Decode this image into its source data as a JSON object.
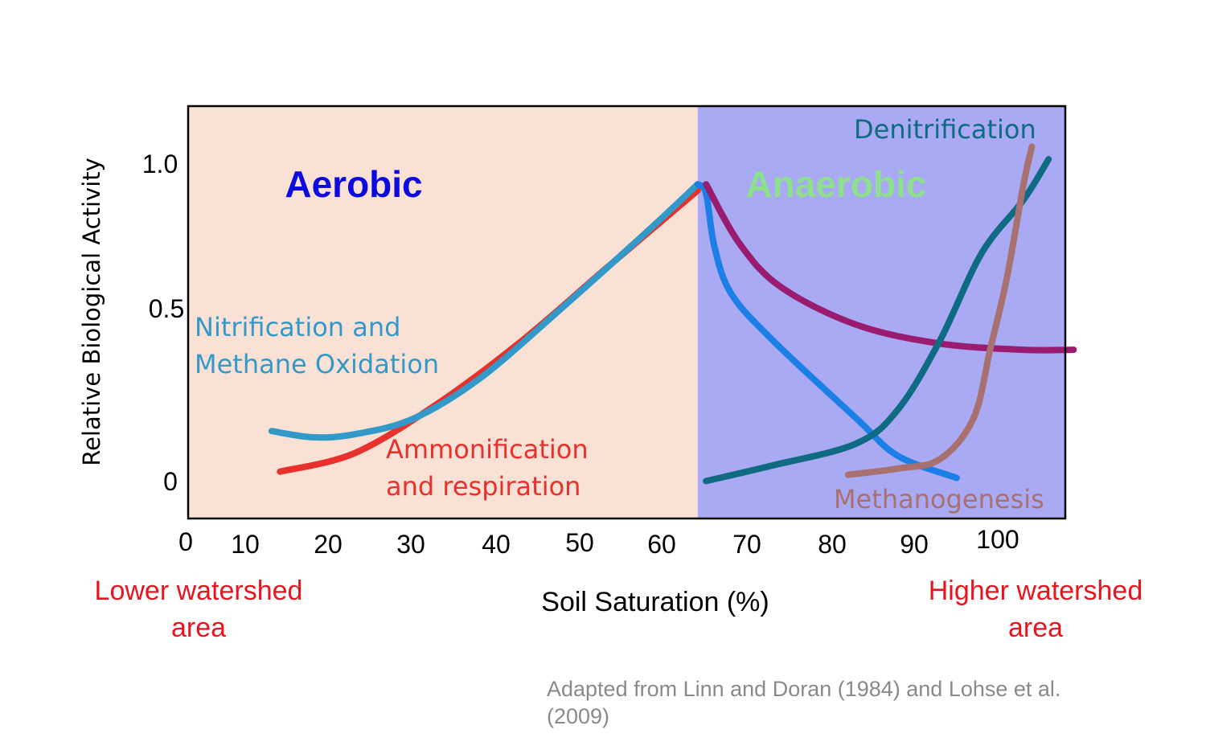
{
  "chart_data": {
    "type": "line",
    "xlabel": "Soil Saturation (%)",
    "ylabel": "Relative Biological Activity",
    "x_ticks": [
      "0",
      "10",
      "20",
      "30",
      "40",
      "50",
      "60",
      "70",
      "80",
      "90",
      "100"
    ],
    "y_ticks": [
      "0",
      "0.5",
      "1.0"
    ],
    "xlim": [
      0,
      105
    ],
    "ylim": [
      -0.12,
      1.2
    ],
    "regions": [
      {
        "name": "Aerobic",
        "x_start": 0,
        "x_end": 61,
        "color": "#fae1d5",
        "label_color": "#0b0bdf"
      },
      {
        "name": "Anaerobic",
        "x_start": 61,
        "x_end": 105,
        "color": "#a9a9f4",
        "label_color": "#8ee08e"
      }
    ],
    "series": [
      {
        "name": "Ammonification and respiration",
        "label_lines": [
          "Ammonification",
          "and respiration"
        ],
        "color": "#e8302c",
        "points": [
          [
            11,
            0.03
          ],
          [
            20,
            0.09
          ],
          [
            30,
            0.25
          ],
          [
            40,
            0.45
          ],
          [
            50,
            0.68
          ],
          [
            61,
            0.93
          ]
        ]
      },
      {
        "name": "Nitrification and Methane Oxidation",
        "label_lines": [
          "Nitrification and",
          "Methane Oxidation"
        ],
        "color": "#3399c9",
        "points": [
          [
            10,
            0.16
          ],
          [
            15,
            0.14
          ],
          [
            20,
            0.15
          ],
          [
            27,
            0.2
          ],
          [
            35,
            0.33
          ],
          [
            45,
            0.56
          ],
          [
            55,
            0.8
          ],
          [
            61,
            0.95
          ]
        ]
      },
      {
        "name": "",
        "color": "#1b7fe6",
        "points": [
          [
            61,
            0.95
          ],
          [
            62,
            0.92
          ],
          [
            63,
            0.75
          ],
          [
            65,
            0.6
          ],
          [
            70,
            0.45
          ],
          [
            80,
            0.2
          ],
          [
            85,
            0.08
          ],
          [
            92,
            0.01
          ]
        ]
      },
      {
        "name": "",
        "color": "#9a1c70",
        "points": [
          [
            62,
            0.95
          ],
          [
            66,
            0.76
          ],
          [
            71,
            0.62
          ],
          [
            80,
            0.5
          ],
          [
            90,
            0.44
          ],
          [
            100,
            0.42
          ],
          [
            106,
            0.42
          ]
        ]
      },
      {
        "name": "Denitrification",
        "label_lines": [
          "Denitrification"
        ],
        "color": "#0e6b82",
        "points": [
          [
            62,
            0.0
          ],
          [
            70,
            0.05
          ],
          [
            80,
            0.12
          ],
          [
            85,
            0.23
          ],
          [
            90,
            0.45
          ],
          [
            95,
            0.73
          ],
          [
            100,
            0.9
          ],
          [
            103,
            1.03
          ]
        ]
      },
      {
        "name": "Methanogenesis",
        "label_lines": [
          "Methanogenesis"
        ],
        "color": "#a8706e",
        "points": [
          [
            79,
            0.02
          ],
          [
            85,
            0.04
          ],
          [
            90,
            0.07
          ],
          [
            94,
            0.2
          ],
          [
            96,
            0.42
          ],
          [
            98,
            0.65
          ],
          [
            100,
            0.95
          ],
          [
            101,
            1.07
          ]
        ]
      }
    ],
    "annotations": {
      "left": [
        "Lower watershed",
        "area"
      ],
      "right": [
        "Higher watershed",
        "area"
      ]
    },
    "legend": "none"
  },
  "source_note": [
    "Adapted from Linn and Doran (1984) and Lohse et al.",
    "(2009)"
  ]
}
